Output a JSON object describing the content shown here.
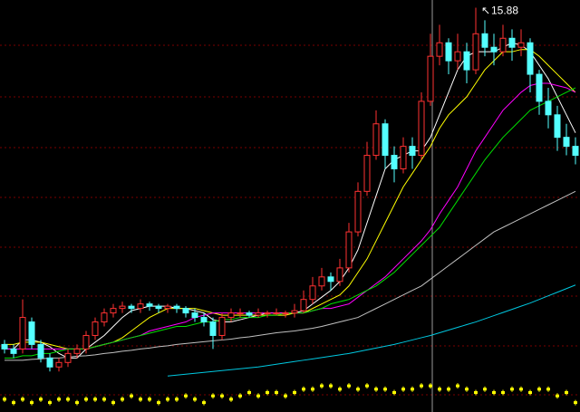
{
  "chart_data": {
    "type": "candlestick",
    "ylim": [
      6.9,
      16.05
    ],
    "up_color": "#ff3232",
    "down_color": "#54ffff",
    "open": [
      8.4,
      8.3,
      8.3,
      8.9,
      8.4,
      8.1,
      7.9,
      8.0,
      8.2,
      8.3,
      8.6,
      8.9,
      9.1,
      9.2,
      9.25,
      9.2,
      9.3,
      9.25,
      9.2,
      9.25,
      9.2,
      9.1,
      9.0,
      8.9,
      8.6,
      9.0,
      9.1,
      9.1,
      9.05,
      9.1,
      9.1,
      9.1,
      9.1,
      9.15,
      9.4,
      9.7,
      9.9,
      9.8,
      10.1,
      10.9,
      11.8,
      12.6,
      13.3,
      12.6,
      12.3,
      12.8,
      12.6,
      13.8,
      14.8,
      15.1,
      14.7,
      14.9,
      14.5,
      15.3,
      15.0,
      14.9,
      15.2,
      15.0,
      15.1,
      14.4,
      13.8,
      13.5,
      13.0,
      12.8
    ],
    "high": [
      8.5,
      8.4,
      9.4,
      9.0,
      8.5,
      8.2,
      8.1,
      8.3,
      8.4,
      8.7,
      9.0,
      9.2,
      9.3,
      9.35,
      9.3,
      9.4,
      9.35,
      9.3,
      9.3,
      9.3,
      9.25,
      9.2,
      9.1,
      9.0,
      9.1,
      9.2,
      9.2,
      9.15,
      9.2,
      9.15,
      9.2,
      9.15,
      9.3,
      9.6,
      9.9,
      10.1,
      10.0,
      10.3,
      11.1,
      12.0,
      12.9,
      13.6,
      13.4,
      12.8,
      13.0,
      13.0,
      14.0,
      15.3,
      15.5,
      15.2,
      15.3,
      15.1,
      15.88,
      15.6,
      15.3,
      15.5,
      15.4,
      15.4,
      15.2,
      14.5,
      14.1,
      13.7,
      13.3,
      13.0
    ],
    "low": [
      8.2,
      8.1,
      8.2,
      8.3,
      8.0,
      7.8,
      7.8,
      7.9,
      8.1,
      8.2,
      8.5,
      8.8,
      9.0,
      9.1,
      9.1,
      9.1,
      9.15,
      9.1,
      9.1,
      9.1,
      9.0,
      8.9,
      8.8,
      8.3,
      8.5,
      8.9,
      9.0,
      9.0,
      9.0,
      9.0,
      9.05,
      9.0,
      9.0,
      9.1,
      9.3,
      9.6,
      9.6,
      9.7,
      10.0,
      10.8,
      11.7,
      12.5,
      12.3,
      12.0,
      12.2,
      12.3,
      12.5,
      13.7,
      14.6,
      14.4,
      14.5,
      14.2,
      14.4,
      14.8,
      14.6,
      14.8,
      14.7,
      14.8,
      14.0,
      13.5,
      13.2,
      12.7,
      12.6,
      12.4
    ],
    "close": [
      8.3,
      8.2,
      9.0,
      8.4,
      8.1,
      7.9,
      8.0,
      8.2,
      8.3,
      8.6,
      8.9,
      9.1,
      9.2,
      9.25,
      9.2,
      9.3,
      9.25,
      9.2,
      9.25,
      9.2,
      9.1,
      9.0,
      8.9,
      8.6,
      9.0,
      9.1,
      9.1,
      9.05,
      9.1,
      9.1,
      9.1,
      9.1,
      9.15,
      9.4,
      9.7,
      9.9,
      9.8,
      10.1,
      10.9,
      11.8,
      12.6,
      13.3,
      12.6,
      12.3,
      12.8,
      12.6,
      13.8,
      14.8,
      15.1,
      14.7,
      14.9,
      14.5,
      15.3,
      15.0,
      14.9,
      15.2,
      15.0,
      15.1,
      14.4,
      13.8,
      13.5,
      13.0,
      12.8,
      12.6
    ],
    "lines": [
      {
        "color": "#ffffff",
        "values": [
          8.3,
          8.3,
          8.5,
          8.5,
          8.45,
          8.35,
          8.2,
          8.1,
          8.1,
          8.3,
          8.45,
          8.6,
          8.8,
          9.0,
          9.15,
          9.2,
          9.25,
          9.25,
          9.25,
          9.2,
          9.2,
          9.15,
          9.1,
          8.95,
          8.9,
          8.9,
          8.95,
          9.0,
          9.05,
          9.1,
          9.1,
          9.1,
          9.1,
          9.15,
          9.3,
          9.45,
          9.6,
          9.8,
          10.1,
          10.5,
          11.1,
          11.7,
          12.3,
          12.5,
          12.6,
          12.7,
          12.7,
          13.0,
          13.5,
          14.0,
          14.5,
          14.8,
          14.9,
          14.9,
          14.9,
          15.0,
          15.1,
          15.05,
          14.9,
          14.6,
          14.3,
          13.9,
          13.5,
          13.1
        ]
      },
      {
        "color": "#ffff00",
        "values": [
          8.4,
          8.4,
          8.45,
          8.45,
          8.45,
          8.4,
          8.35,
          8.3,
          8.3,
          8.3,
          8.35,
          8.4,
          8.45,
          8.55,
          8.7,
          8.85,
          9.0,
          9.1,
          9.2,
          9.2,
          9.2,
          9.2,
          9.15,
          9.1,
          9.05,
          9.05,
          9.05,
          9.05,
          9.05,
          9.05,
          9.05,
          9.05,
          9.1,
          9.1,
          9.2,
          9.3,
          9.4,
          9.5,
          9.7,
          10.0,
          10.3,
          10.7,
          11.1,
          11.5,
          11.9,
          12.2,
          12.5,
          12.8,
          13.2,
          13.5,
          13.7,
          13.9,
          14.2,
          14.5,
          14.7,
          14.9,
          14.9,
          14.95,
          14.95,
          14.8,
          14.6,
          14.4,
          14.2,
          14.0
        ]
      },
      {
        "color": "#ff00ff",
        "values": [
          8.3,
          8.3,
          8.3,
          8.3,
          8.3,
          8.3,
          8.3,
          8.3,
          8.3,
          8.3,
          8.35,
          8.4,
          8.45,
          8.5,
          8.55,
          8.6,
          8.7,
          8.75,
          8.8,
          8.85,
          8.9,
          9.0,
          9.05,
          9.1,
          9.1,
          9.1,
          9.1,
          9.1,
          9.1,
          9.1,
          9.1,
          9.1,
          9.1,
          9.1,
          9.15,
          9.2,
          9.2,
          9.25,
          9.3,
          9.45,
          9.6,
          9.75,
          9.9,
          10.1,
          10.3,
          10.5,
          10.7,
          10.95,
          11.3,
          11.6,
          11.9,
          12.3,
          12.7,
          13.0,
          13.3,
          13.6,
          13.8,
          14.0,
          14.15,
          14.2,
          14.2,
          14.15,
          14.1,
          14.0
        ]
      },
      {
        "color": "#00e000",
        "values": [
          8.1,
          8.1,
          8.15,
          8.15,
          8.2,
          8.2,
          8.25,
          8.3,
          8.3,
          8.3,
          8.35,
          8.4,
          8.45,
          8.5,
          8.55,
          8.6,
          8.65,
          8.7,
          8.75,
          8.8,
          8.8,
          8.85,
          8.9,
          8.9,
          8.95,
          8.95,
          9.0,
          9.0,
          9.0,
          9.05,
          9.05,
          9.1,
          9.1,
          9.1,
          9.15,
          9.2,
          9.3,
          9.35,
          9.4,
          9.5,
          9.6,
          9.7,
          9.85,
          10.0,
          10.2,
          10.4,
          10.6,
          10.8,
          11.0,
          11.3,
          11.6,
          11.9,
          12.2,
          12.5,
          12.75,
          13.0,
          13.2,
          13.4,
          13.6,
          13.7,
          13.8,
          13.9,
          14.0,
          14.1
        ]
      },
      {
        "color": "#c0c0c0",
        "values": [
          8.05,
          8.05,
          8.05,
          8.07,
          8.08,
          8.1,
          8.1,
          8.12,
          8.14,
          8.15,
          8.17,
          8.2,
          8.22,
          8.25,
          8.27,
          8.3,
          8.32,
          8.35,
          8.37,
          8.4,
          8.42,
          8.44,
          8.46,
          8.48,
          8.5,
          8.52,
          8.55,
          8.57,
          8.6,
          8.63,
          8.66,
          8.68,
          8.7,
          8.73,
          8.76,
          8.8,
          8.85,
          8.9,
          8.95,
          9.0,
          9.1,
          9.2,
          9.3,
          9.4,
          9.5,
          9.6,
          9.7,
          9.85,
          10.0,
          10.15,
          10.3,
          10.45,
          10.6,
          10.75,
          10.9,
          11.0,
          11.1,
          11.2,
          11.3,
          11.4,
          11.5,
          11.6,
          11.7,
          11.8
        ]
      },
      {
        "color": "#00c8e0",
        "values": [
          null,
          null,
          null,
          null,
          null,
          null,
          null,
          null,
          null,
          null,
          null,
          null,
          null,
          null,
          null,
          null,
          null,
          null,
          7.7,
          7.72,
          7.74,
          7.76,
          7.78,
          7.8,
          7.82,
          7.84,
          7.86,
          7.88,
          7.9,
          7.93,
          7.96,
          7.99,
          8.02,
          8.05,
          8.08,
          8.11,
          8.14,
          8.17,
          8.2,
          8.24,
          8.28,
          8.32,
          8.36,
          8.4,
          8.45,
          8.5,
          8.55,
          8.6,
          8.66,
          8.72,
          8.78,
          8.84,
          8.9,
          8.97,
          9.04,
          9.11,
          9.18,
          9.25,
          9.32,
          9.4,
          9.48,
          9.56,
          9.64,
          9.72
        ]
      }
    ],
    "indicator": {
      "color": "#ffff00",
      "ylim": [
        0,
        10
      ],
      "values": [
        3,
        2,
        3,
        2,
        3,
        2,
        3,
        3,
        2,
        3,
        3,
        3,
        2,
        3,
        4,
        3,
        3,
        2,
        3,
        3,
        4,
        3,
        2,
        4,
        4,
        3,
        4,
        5,
        4,
        5,
        5,
        4,
        5,
        6,
        6,
        7,
        7,
        6,
        7,
        6,
        7,
        6,
        6,
        5,
        6,
        6,
        7,
        7,
        6,
        6,
        7,
        6,
        5,
        6,
        5,
        5,
        6,
        6,
        5,
        6,
        6,
        4,
        5,
        2
      ]
    }
  }
}
